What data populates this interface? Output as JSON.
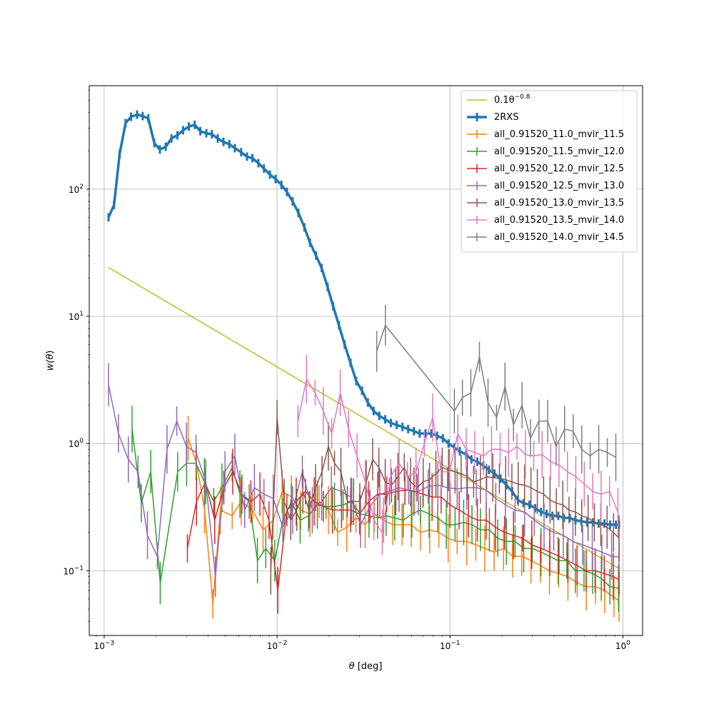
{
  "chart_data": {
    "type": "line",
    "xscale": "log",
    "yscale": "log",
    "xlim": [
      0.00082,
      1.3
    ],
    "ylim": [
      0.031,
      650
    ],
    "grid": true,
    "legend_position": "top-right",
    "x_tick_labels": [
      {
        "value": 0.001,
        "base": "10",
        "exp": "−3"
      },
      {
        "value": 0.01,
        "base": "10",
        "exp": "−2"
      },
      {
        "value": 0.1,
        "base": "10",
        "exp": "−1"
      },
      {
        "value": 1,
        "base": "10",
        "exp": "0"
      }
    ],
    "y_tick_labels": [
      {
        "value": 0.1,
        "base": "10",
        "exp": "−1"
      },
      {
        "value": 1,
        "base": "10",
        "exp": "0"
      },
      {
        "value": 10,
        "base": "10",
        "exp": "1"
      },
      {
        "value": 100,
        "base": "10",
        "exp": "2"
      }
    ],
    "xlabel": {
      "symbol": "θ",
      "unit": " [deg]"
    },
    "ylabel": {
      "prefix": "w(",
      "symbol": "θ",
      "suffix": ")"
    },
    "powerlaw": {
      "label_coef": "0.1θ",
      "label_exp": "−0.8",
      "color": "#bcbd22",
      "x": [
        0.00106,
        0.95
      ],
      "y": [
        24.2,
        0.104
      ]
    },
    "series": [
      {
        "name": "2RXS",
        "color": "#1f77b4",
        "width": 3.5,
        "x": [
          0.00106,
          0.00114,
          0.00123,
          0.00133,
          0.00143,
          0.00155,
          0.00167,
          0.0018,
          0.00195,
          0.0021,
          0.00227,
          0.00245,
          0.00265,
          0.00286,
          0.00309,
          0.00334,
          0.0036,
          0.0039,
          0.0042,
          0.00454,
          0.0049,
          0.0053,
          0.0057,
          0.0062,
          0.0067,
          0.0072,
          0.0078,
          0.0084,
          0.0091,
          0.0098,
          0.0106,
          0.0114,
          0.0123,
          0.0133,
          0.0144,
          0.0155,
          0.0168,
          0.0181,
          0.0196,
          0.0211,
          0.0228,
          0.0246,
          0.0266,
          0.0287,
          0.031,
          0.0335,
          0.0362,
          0.039,
          0.0422,
          0.0455,
          0.0492,
          0.0531,
          0.0573,
          0.0619,
          0.0668,
          0.0722,
          0.078,
          0.0842,
          0.0909,
          0.0981,
          0.106,
          0.114,
          0.124,
          0.133,
          0.144,
          0.156,
          0.168,
          0.181,
          0.196,
          0.212,
          0.229,
          0.247,
          0.266,
          0.288,
          0.311,
          0.336,
          0.362,
          0.391,
          0.423,
          0.456,
          0.493,
          0.532,
          0.575,
          0.621,
          0.67,
          0.724,
          0.782,
          0.844,
          0.911,
          0.95
        ],
        "y": [
          60,
          75,
          190,
          330,
          370,
          385,
          375,
          360,
          230,
          205,
          215,
          250,
          265,
          290,
          310,
          320,
          285,
          275,
          270,
          250,
          235,
          225,
          210,
          195,
          180,
          175,
          160,
          145,
          130,
          120,
          108,
          95,
          80,
          65,
          50,
          38,
          30,
          24,
          17,
          12,
          8.5,
          6,
          4.3,
          3.1,
          2.6,
          2.1,
          1.8,
          1.65,
          1.55,
          1.45,
          1.4,
          1.35,
          1.3,
          1.25,
          1.2,
          1.2,
          1.2,
          1.15,
          1.1,
          1.0,
          0.93,
          0.87,
          0.82,
          0.75,
          0.72,
          0.67,
          0.62,
          0.58,
          0.53,
          0.47,
          0.42,
          0.36,
          0.34,
          0.33,
          0.31,
          0.29,
          0.28,
          0.27,
          0.27,
          0.26,
          0.26,
          0.25,
          0.245,
          0.24,
          0.24,
          0.235,
          0.235,
          0.23,
          0.23,
          0.23
        ]
      },
      {
        "name": "all_0.91520_11.0_mvir_11.5",
        "color": "#ff7f0e",
        "width": 1.5,
        "x": [
          0.00306,
          0.00342,
          0.00381,
          0.00425,
          0.0047,
          0.0055,
          0.0062,
          0.0072,
          0.0083,
          0.0095,
          0.0107,
          0.0121,
          0.0137,
          0.0155,
          0.0175,
          0.0198,
          0.0224,
          0.0253,
          0.0286,
          0.0323,
          0.0365,
          0.0413,
          0.0467,
          0.0528,
          0.0597,
          0.0675,
          0.0763,
          0.0863,
          0.0976,
          0.11,
          0.125,
          0.141,
          0.159,
          0.18,
          0.204,
          0.23,
          0.26,
          0.294,
          0.333,
          0.376,
          0.425,
          0.481,
          0.544,
          0.614,
          0.695,
          0.785,
          0.888,
          0.95
        ],
        "y": [
          1.1,
          0.7,
          0.3,
          0.055,
          0.3,
          0.27,
          0.35,
          0.3,
          0.21,
          0.25,
          0.42,
          0.38,
          0.3,
          0.28,
          0.35,
          0.3,
          0.2,
          0.22,
          0.26,
          0.23,
          0.28,
          0.25,
          0.23,
          0.23,
          0.23,
          0.2,
          0.21,
          0.2,
          0.18,
          0.17,
          0.17,
          0.16,
          0.15,
          0.14,
          0.15,
          0.13,
          0.13,
          0.12,
          0.11,
          0.1,
          0.095,
          0.09,
          0.08,
          0.075,
          0.075,
          0.07,
          0.062,
          0.058
        ]
      },
      {
        "name": "all_0.91520_11.5_mvir_12.0",
        "color": "#2ca02c",
        "width": 1.5,
        "x": [
          0.00145,
          0.00164,
          0.00186,
          0.00211,
          0.00266,
          0.003,
          0.0034,
          0.0038,
          0.0043,
          0.0048,
          0.0055,
          0.0061,
          0.0069,
          0.0077,
          0.0086,
          0.0097,
          0.0108,
          0.0121,
          0.0136,
          0.0152,
          0.0171,
          0.0192,
          0.0215,
          0.0241,
          0.027,
          0.0303,
          0.034,
          0.0381,
          0.0427,
          0.0479,
          0.0537,
          0.0602,
          0.0675,
          0.0757,
          0.0849,
          0.0952,
          0.107,
          0.12,
          0.134,
          0.15,
          0.169,
          0.189,
          0.212,
          0.238,
          0.267,
          0.299,
          0.336,
          0.377,
          0.422,
          0.474,
          0.531,
          0.596,
          0.668,
          0.75,
          0.841,
          0.943
        ],
        "y": [
          1.3,
          0.34,
          0.6,
          0.08,
          0.6,
          0.7,
          0.7,
          0.5,
          0.35,
          0.45,
          0.65,
          0.4,
          0.35,
          0.12,
          0.15,
          0.12,
          0.25,
          0.35,
          0.25,
          0.27,
          0.33,
          0.32,
          0.32,
          0.33,
          0.35,
          0.28,
          0.27,
          0.26,
          0.27,
          0.26,
          0.25,
          0.28,
          0.3,
          0.28,
          0.26,
          0.23,
          0.23,
          0.24,
          0.23,
          0.21,
          0.21,
          0.18,
          0.17,
          0.17,
          0.15,
          0.15,
          0.14,
          0.13,
          0.12,
          0.12,
          0.1,
          0.1,
          0.095,
          0.087,
          0.075,
          0.073
        ]
      },
      {
        "name": "all_0.91520_12.0_mvir_12.5",
        "color": "#d62728",
        "width": 1.5,
        "x": [
          0.00303,
          0.00342,
          0.00386,
          0.00436,
          0.00492,
          0.00554,
          0.00626,
          0.00706,
          0.00796,
          0.00898,
          0.0101,
          0.0114,
          0.0129,
          0.0146,
          0.0164,
          0.0185,
          0.0209,
          0.0236,
          0.0266,
          0.03,
          0.0339,
          0.0382,
          0.0431,
          0.0486,
          0.0549,
          0.0619,
          0.0698,
          0.0788,
          0.0889,
          0.1,
          0.113,
          0.128,
          0.144,
          0.162,
          0.183,
          0.207,
          0.233,
          0.263,
          0.297,
          0.335,
          0.378,
          0.427,
          0.481,
          0.543,
          0.613,
          0.691,
          0.78,
          0.88,
          0.95
        ],
        "y": [
          0.15,
          0.35,
          0.5,
          0.25,
          0.45,
          0.6,
          0.4,
          0.35,
          0.4,
          0.25,
          0.07,
          0.3,
          0.35,
          0.42,
          0.35,
          0.32,
          0.3,
          0.3,
          0.3,
          0.28,
          0.35,
          0.4,
          0.4,
          0.42,
          0.43,
          0.42,
          0.4,
          0.38,
          0.38,
          0.33,
          0.3,
          0.27,
          0.25,
          0.25,
          0.22,
          0.2,
          0.19,
          0.18,
          0.16,
          0.15,
          0.14,
          0.13,
          0.12,
          0.11,
          0.1,
          0.1,
          0.095,
          0.09,
          0.085
        ]
      },
      {
        "name": "all_0.91520_12.5_mvir_13.0",
        "color": "#9467bd",
        "width": 1.5,
        "x": [
          0.00106,
          0.00121,
          0.00138,
          0.00157,
          0.00178,
          0.00203,
          0.00231,
          0.00263,
          0.00299,
          0.0034,
          0.00387,
          0.0044,
          0.005,
          0.0057,
          0.0065,
          0.0074,
          0.0084,
          0.0095,
          0.0108,
          0.0123,
          0.014,
          0.016,
          0.0181,
          0.0206,
          0.0235,
          0.0267,
          0.0304,
          0.0345,
          0.0393,
          0.0447,
          0.0508,
          0.0578,
          0.0657,
          0.0748,
          0.0851,
          0.0967,
          0.11,
          0.125,
          0.142,
          0.162,
          0.184,
          0.209,
          0.238,
          0.27,
          0.307,
          0.35,
          0.398,
          0.452,
          0.514,
          0.585,
          0.665,
          0.756,
          0.86,
          0.95
        ],
        "y": [
          2.9,
          1.2,
          0.75,
          0.6,
          0.19,
          0.13,
          0.9,
          1.5,
          0.95,
          0.85,
          0.5,
          0.09,
          0.6,
          0.8,
          0.3,
          0.45,
          0.4,
          0.37,
          0.22,
          0.3,
          0.6,
          0.3,
          0.35,
          0.45,
          0.42,
          0.38,
          0.23,
          0.32,
          0.4,
          0.42,
          0.45,
          0.43,
          0.42,
          0.46,
          0.47,
          0.45,
          0.44,
          0.45,
          0.45,
          0.43,
          0.37,
          0.33,
          0.3,
          0.29,
          0.25,
          0.22,
          0.2,
          0.19,
          0.17,
          0.16,
          0.15,
          0.14,
          0.13,
          0.128
        ]
      },
      {
        "name": "all_0.91520_13.0_mvir_13.5",
        "color": "#8c564b",
        "width": 1.5,
        "x": [
          0.0092,
          0.01,
          0.011,
          0.012,
          0.013,
          0.0141,
          0.0153,
          0.0167,
          0.0182,
          0.0198,
          0.0215,
          0.0234,
          0.0255,
          0.0277,
          0.0301,
          0.0328,
          0.0357,
          0.0388,
          0.0422,
          0.0459,
          0.05,
          0.0544,
          0.0592,
          0.0644,
          0.07,
          0.0762,
          0.0829,
          0.0902,
          0.0981,
          0.107,
          0.116,
          0.126,
          0.137,
          0.15,
          0.163,
          0.177,
          0.193,
          0.21,
          0.228,
          0.248,
          0.27,
          0.294,
          0.32,
          0.348,
          0.379,
          0.412,
          0.449,
          0.488,
          0.531,
          0.578,
          0.629,
          0.684,
          0.745,
          0.81,
          0.882,
          0.95
        ],
        "y": [
          0.1,
          1.6,
          0.35,
          0.25,
          0.3,
          0.42,
          0.3,
          0.45,
          0.6,
          0.95,
          0.7,
          0.6,
          0.35,
          0.35,
          0.35,
          0.5,
          0.75,
          0.65,
          0.5,
          0.47,
          0.55,
          0.65,
          0.5,
          0.45,
          0.5,
          0.52,
          0.58,
          0.65,
          0.62,
          0.6,
          0.58,
          0.55,
          0.5,
          0.52,
          0.55,
          0.54,
          0.53,
          0.52,
          0.5,
          0.48,
          0.47,
          0.45,
          0.42,
          0.4,
          0.36,
          0.34,
          0.33,
          0.3,
          0.29,
          0.27,
          0.26,
          0.24,
          0.23,
          0.22,
          0.2,
          0.18
        ]
      },
      {
        "name": "all_0.91520_13.5_mvir_14.0",
        "color": "#e377c2",
        "width": 1.5,
        "x": [
          0.0132,
          0.0148,
          0.0166,
          0.0185,
          0.0207,
          0.0232,
          0.0259,
          0.029,
          0.0324,
          0.0363,
          0.0406,
          0.0454,
          0.0508,
          0.0568,
          0.0636,
          0.0711,
          0.0795,
          0.0889,
          0.0995,
          0.111,
          0.124,
          0.139,
          0.156,
          0.174,
          0.195,
          0.218,
          0.244,
          0.273,
          0.305,
          0.341,
          0.382,
          0.427,
          0.478,
          0.534,
          0.598,
          0.669,
          0.748,
          0.837,
          0.936
        ],
        "y": [
          1.5,
          3.2,
          2.5,
          1.8,
          1.2,
          2.5,
          1.3,
          0.8,
          0.5,
          0.25,
          0.2,
          0.55,
          0.7,
          0.55,
          0.6,
          1.0,
          1.6,
          0.6,
          0.6,
          1.2,
          0.9,
          0.85,
          0.8,
          0.9,
          0.9,
          0.85,
          0.95,
          0.82,
          0.8,
          0.82,
          0.72,
          0.68,
          0.6,
          0.55,
          0.48,
          0.42,
          0.4,
          0.42,
          0.29
        ]
      },
      {
        "name": "all_0.91520_14.0_mvir_14.5",
        "color": "#7f7f7f",
        "width": 1.5,
        "x": [
          0.0377,
          0.0423,
          0.106,
          0.118,
          0.132,
          0.148,
          0.166,
          0.186,
          0.208,
          0.233,
          0.261,
          0.292,
          0.327,
          0.367,
          0.411,
          0.46,
          0.516,
          0.578,
          0.647,
          0.725,
          0.812,
          0.91
        ],
        "y": [
          5.3,
          8.5,
          1.8,
          2.3,
          2.5,
          4.8,
          2.1,
          1.6,
          2.8,
          1.4,
          2.0,
          1.1,
          1.5,
          1.5,
          0.95,
          1.3,
          1.25,
          0.9,
          0.8,
          0.9,
          0.85,
          0.78
        ]
      }
    ]
  }
}
